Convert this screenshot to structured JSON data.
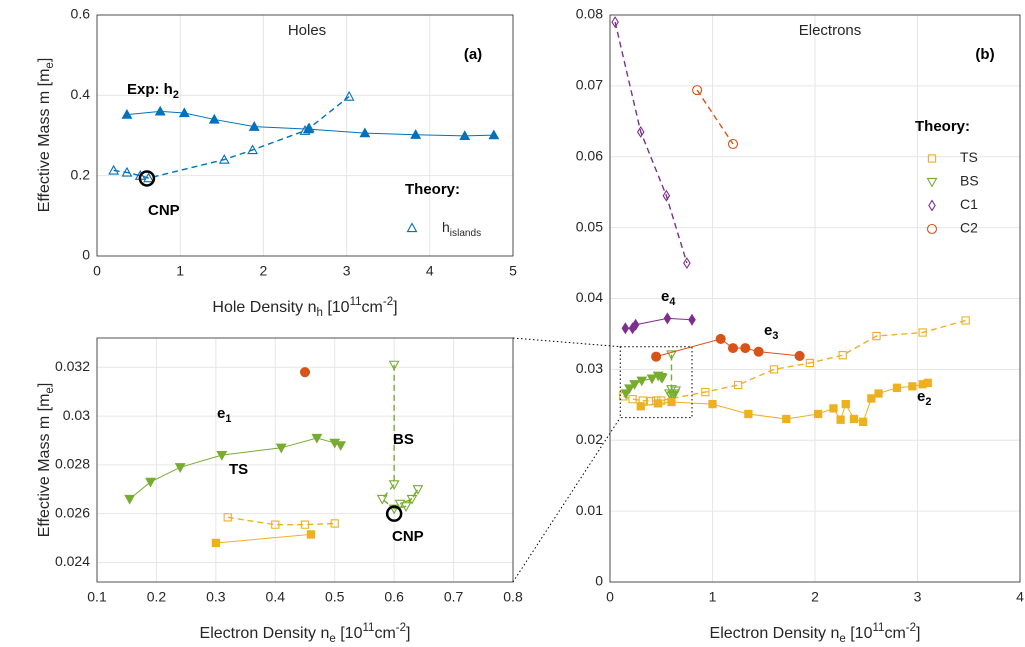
{
  "chart_data": [
    {
      "type": "scatter",
      "title": "Holes",
      "panel_label": "(a)",
      "xlabel": [
        "Hole Density n",
        {
          "sub": "h"
        },
        " [10",
        {
          "sup": "11"
        },
        "cm",
        {
          "sup": "-2"
        },
        "]"
      ],
      "ylabel": [
        "Effective Mass m [m",
        {
          "sub": "e"
        },
        "]"
      ],
      "xlim": [
        0,
        5
      ],
      "ylim": [
        0,
        0.6
      ],
      "xticks": [
        0,
        1,
        2,
        3,
        4,
        5
      ],
      "yticks": [
        0,
        0.2,
        0.4,
        0.6
      ],
      "grid": true,
      "legend_title": "Theory:",
      "annotations": [
        {
          "text": [
            "Exp: h",
            {
              "sub": "2"
            }
          ]
        },
        {
          "text": [
            "CNP"
          ]
        }
      ],
      "series": [
        {
          "color": "#0072BD",
          "marker": "^",
          "filled": true,
          "dashed": false,
          "x": [
            0.36,
            0.76,
            1.05,
            1.41,
            1.89,
            2.54,
            3.22,
            3.83,
            4.42,
            4.77
          ],
          "values": [
            0.352,
            0.36,
            0.356,
            0.34,
            0.322,
            0.316,
            0.306,
            0.302,
            0.299,
            0.301
          ]
        },
        {
          "name": [
            "h",
            {
              "sub": "islands"
            }
          ],
          "color": "#0072BD",
          "marker": "^",
          "filled": false,
          "dashed": true,
          "x": [
            0.2,
            0.36,
            0.52,
            0.62,
            1.53,
            1.87,
            2.5,
            2.55,
            3.03
          ],
          "values": [
            0.213,
            0.208,
            0.2,
            0.194,
            0.24,
            0.264,
            0.312,
            0.318,
            0.397
          ]
        },
        {
          "color": "#000000",
          "marker": "o",
          "filled": false,
          "dashed": false,
          "big": true,
          "x": [
            0.6
          ],
          "values": [
            0.193
          ]
        }
      ]
    },
    {
      "type": "scatter",
      "title": "Electrons",
      "panel_label": "(b)",
      "xlabel": [
        "Electron Density n",
        {
          "sub": "e"
        },
        " [10",
        {
          "sup": "11"
        },
        "cm",
        {
          "sup": "-2"
        },
        "]"
      ],
      "xlim": [
        0,
        4
      ],
      "ylim": [
        0,
        0.08
      ],
      "xticks": [
        0,
        1,
        2,
        3,
        4
      ],
      "yticks": [
        0,
        0.01,
        0.02,
        0.03,
        0.04,
        0.05,
        0.06,
        0.07,
        0.08
      ],
      "grid": true,
      "legend_title": "Theory:",
      "annotations": [
        {
          "text": [
            "e",
            {
              "sub": "4"
            }
          ]
        },
        {
          "text": [
            "e",
            {
              "sub": "3"
            }
          ]
        },
        {
          "text": [
            "e",
            {
              "sub": "2"
            }
          ]
        }
      ],
      "series": [
        {
          "name": "TS",
          "color": "#EDB120",
          "marker": "s",
          "filled": false,
          "dashed": true,
          "x": [
            0.13,
            0.22,
            0.32,
            0.4,
            0.45,
            0.5,
            0.93,
            1.25,
            1.6,
            1.95,
            2.27,
            2.6,
            3.05,
            3.47
          ],
          "values": [
            0.0262,
            0.0258,
            0.0256,
            0.0255,
            0.0256,
            0.0256,
            0.0268,
            0.0278,
            0.03,
            0.0309,
            0.032,
            0.0347,
            0.0352,
            0.0369
          ]
        },
        {
          "name": "BS",
          "color": "#77AC30",
          "marker": "v",
          "filled": false,
          "dashed": true,
          "x": [
            0.6,
            0.6,
            0.58,
            0.6,
            0.62,
            0.64,
            0.63,
            0.61
          ],
          "values": [
            0.0321,
            0.0272,
            0.0266,
            0.0262,
            0.0263,
            0.027,
            0.0266,
            0.0264
          ]
        },
        {
          "name": "C1",
          "color": "#7E2F8E",
          "marker": "d",
          "filled": false,
          "dashed": true,
          "x": [
            0.05,
            0.3,
            0.55,
            0.75
          ],
          "values": [
            0.079,
            0.0635,
            0.0545,
            0.045
          ]
        },
        {
          "name": "C2",
          "color": "#D95319",
          "marker": "o",
          "filled": false,
          "dashed": true,
          "x": [
            0.85,
            1.2
          ],
          "values": [
            0.0694,
            0.0618
          ]
        },
        {
          "color": "#EDB120",
          "marker": "s",
          "filled": true,
          "dashed": false,
          "x": [
            0.3,
            0.47,
            0.6,
            1.0,
            1.35,
            1.72,
            2.03,
            2.18,
            2.25,
            2.3,
            2.38,
            2.47,
            2.55,
            2.62,
            2.8,
            2.95,
            3.05,
            3.1
          ],
          "values": [
            0.0248,
            0.0252,
            0.0254,
            0.0251,
            0.0237,
            0.023,
            0.0237,
            0.0245,
            0.0229,
            0.0251,
            0.023,
            0.0226,
            0.0259,
            0.0266,
            0.0274,
            0.0276,
            0.0279,
            0.0281
          ]
        },
        {
          "color": "#77AC30",
          "marker": "v",
          "filled": true,
          "dashed": false,
          "x": [
            0.155,
            0.19,
            0.24,
            0.31,
            0.41,
            0.47,
            0.5,
            0.51
          ],
          "values": [
            0.0266,
            0.0273,
            0.0279,
            0.0284,
            0.0287,
            0.0291,
            0.0289,
            0.0288
          ]
        },
        {
          "color": "#7E2F8E",
          "marker": "d",
          "filled": true,
          "dashed": false,
          "x": [
            0.15,
            0.22,
            0.25,
            0.56,
            0.8
          ],
          "values": [
            0.0358,
            0.0358,
            0.0363,
            0.0372,
            0.037
          ]
        },
        {
          "color": "#D95319",
          "marker": "o",
          "filled": true,
          "dashed": false,
          "x": [
            0.45,
            1.08,
            1.2,
            1.32,
            1.45,
            1.85
          ],
          "values": [
            0.0318,
            0.0343,
            0.033,
            0.033,
            0.0325,
            0.0319
          ]
        }
      ]
    },
    {
      "type": "scatter",
      "xlabel": [
        "Electron Density n",
        {
          "sub": "e"
        },
        " [10",
        {
          "sup": "11"
        },
        "cm",
        {
          "sup": "-2"
        },
        "]"
      ],
      "ylabel": [
        "Effective Mass m [m",
        {
          "sub": "e"
        },
        "]"
      ],
      "xlim": [
        0.1,
        0.8
      ],
      "ylim": [
        0.0232,
        0.0332
      ],
      "xticks": [
        0.1,
        0.2,
        0.3,
        0.4,
        0.5,
        0.6,
        0.7,
        0.8
      ],
      "yticks": [
        0.024,
        0.026,
        0.028,
        0.03,
        0.032
      ],
      "grid": true,
      "annotations": [
        {
          "text": [
            "e",
            {
              "sub": "1"
            }
          ]
        },
        {
          "text": [
            "TS"
          ]
        },
        {
          "text": [
            "BS"
          ]
        },
        {
          "text": [
            "CNP"
          ]
        }
      ],
      "series": [
        {
          "color": "#EDB120",
          "marker": "s",
          "filled": false,
          "dashed": true,
          "x": [
            0.32,
            0.4,
            0.45,
            0.5
          ],
          "values": [
            0.02585,
            0.02555,
            0.02555,
            0.0256
          ]
        },
        {
          "color": "#EDB120",
          "marker": "s",
          "filled": true,
          "dashed": false,
          "x": [
            0.3,
            0.46
          ],
          "values": [
            0.0248,
            0.02515
          ]
        },
        {
          "color": "#D95319",
          "marker": "o",
          "filled": true,
          "dashed": false,
          "x": [
            0.45
          ],
          "values": [
            0.0318
          ]
        },
        {
          "color": "#77AC30",
          "marker": "v",
          "filled": true,
          "dashed": false,
          "x": [
            0.155,
            0.19,
            0.24,
            0.31,
            0.41,
            0.47,
            0.5,
            0.51
          ],
          "values": [
            0.0266,
            0.0273,
            0.0279,
            0.0284,
            0.0287,
            0.0291,
            0.0289,
            0.0288
          ]
        },
        {
          "color": "#77AC30",
          "marker": "v",
          "filled": false,
          "dashed": true,
          "x": [
            0.6,
            0.6,
            0.58,
            0.6,
            0.62,
            0.64,
            0.63,
            0.61
          ],
          "values": [
            0.0321,
            0.0272,
            0.0266,
            0.0262,
            0.0263,
            0.027,
            0.0266,
            0.0264
          ]
        },
        {
          "color": "#000000",
          "marker": "o",
          "filled": false,
          "dashed": false,
          "big": true,
          "x": [
            0.6
          ],
          "values": [
            0.026
          ]
        }
      ]
    }
  ]
}
